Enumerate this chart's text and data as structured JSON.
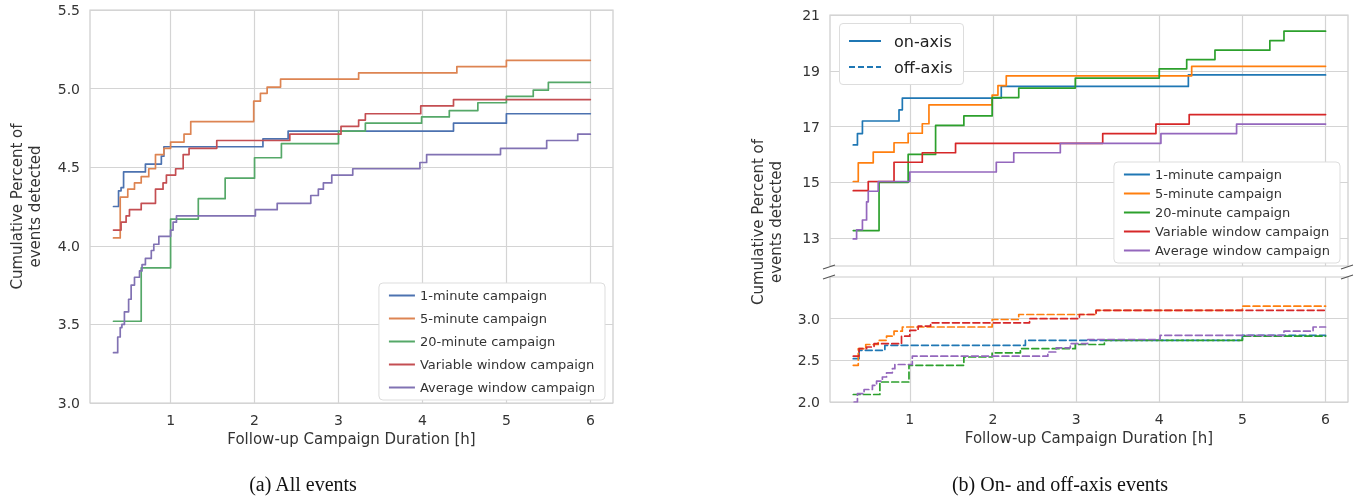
{
  "chart_data": [
    {
      "type": "step",
      "xlabel": "Follow-up Campaign Duration [h]",
      "ylabel": "Cumulative Percent of\nevents detected",
      "xlim": [
        0.04,
        6.27
      ],
      "xticks": [
        1,
        2,
        3,
        4,
        5,
        6
      ],
      "ylim": [
        3.0,
        5.5
      ],
      "yticks": [
        {
          "value": 3,
          "label": "3.0"
        },
        3.5,
        {
          "value": 4,
          "label": "4.0"
        },
        4.5,
        {
          "value": 5,
          "label": "5.0"
        },
        5.5
      ],
      "grid": true,
      "legend": "bottom right",
      "line_style": "solid",
      "annotations": [
        "(a) All events"
      ],
      "series": [
        {
          "name": "1-minute campaign",
          "color": "#4c72b0",
          "x": [
            0.32,
            0.38,
            0.41,
            0.44,
            0.7,
            0.89,
            0.92,
            2.1,
            2.4,
            4.37,
            5.0,
            6.0
          ],
          "values": [
            4.25,
            4.35,
            4.37,
            4.47,
            4.52,
            4.57,
            4.63,
            4.68,
            4.73,
            4.78,
            4.84,
            4.84
          ]
        },
        {
          "name": "5-minute campaign",
          "color": "#dd8452",
          "x": [
            0.32,
            0.4,
            0.49,
            0.57,
            0.65,
            0.74,
            0.82,
            0.92,
            1.0,
            1.16,
            1.24,
            1.99,
            2.07,
            2.15,
            2.31,
            3.24,
            4.41,
            5.0,
            6.0
          ],
          "values": [
            4.05,
            4.31,
            4.36,
            4.4,
            4.44,
            4.49,
            4.58,
            4.62,
            4.66,
            4.71,
            4.79,
            4.92,
            4.97,
            5.01,
            5.06,
            5.1,
            5.14,
            5.18,
            5.18
          ]
        },
        {
          "name": "20-minute campaign",
          "color": "#55a868",
          "x": [
            0.32,
            0.65,
            1.0,
            1.33,
            1.65,
            2.0,
            2.32,
            3.0,
            3.32,
            3.99,
            4.32,
            4.66,
            5.0,
            5.32,
            5.5,
            6.0
          ],
          "values": [
            3.52,
            3.86,
            4.17,
            4.3,
            4.43,
            4.56,
            4.65,
            4.73,
            4.78,
            4.82,
            4.86,
            4.91,
            4.95,
            4.99,
            5.04,
            5.04
          ]
        },
        {
          "name": "Variable window campaign",
          "color": "#c44e52",
          "x": [
            0.32,
            0.41,
            0.47,
            0.51,
            0.65,
            0.82,
            0.91,
            0.95,
            1.06,
            1.15,
            1.22,
            1.55,
            2.42,
            3.03,
            3.24,
            3.32,
            3.98,
            4.37,
            6.0
          ],
          "values": [
            4.1,
            4.15,
            4.19,
            4.23,
            4.27,
            4.36,
            4.4,
            4.45,
            4.49,
            4.58,
            4.62,
            4.67,
            4.71,
            4.76,
            4.8,
            4.84,
            4.89,
            4.93,
            4.93
          ]
        },
        {
          "name": "Average window campaign",
          "color": "#8172b3",
          "x": [
            0.32,
            0.37,
            0.4,
            0.42,
            0.45,
            0.5,
            0.53,
            0.57,
            0.63,
            0.66,
            0.7,
            0.77,
            0.8,
            0.86,
            1.0,
            1.03,
            1.07,
            2.01,
            2.27,
            2.67,
            2.76,
            2.82,
            2.92,
            3.17,
            3.97,
            4.05,
            4.93,
            5.48,
            5.85,
            6.0
          ],
          "values": [
            3.32,
            3.42,
            3.48,
            3.5,
            3.58,
            3.66,
            3.75,
            3.8,
            3.84,
            3.88,
            3.92,
            3.97,
            4.01,
            4.06,
            4.1,
            4.15,
            4.19,
            4.23,
            4.27,
            4.32,
            4.36,
            4.4,
            4.45,
            4.49,
            4.53,
            4.58,
            4.62,
            4.67,
            4.71,
            4.71
          ]
        }
      ]
    },
    {
      "type": "step",
      "ylabel": "Cumulative Percent of\nevents detected",
      "xlim": [
        0.04,
        6.27
      ],
      "xticks": [
        1,
        2,
        3,
        4,
        5,
        6
      ],
      "ylim": [
        12,
        21
      ],
      "yticks": [
        13,
        15,
        17,
        19,
        21
      ],
      "grid": true,
      "legend": "bottom right",
      "line_style": "solid",
      "tick_labels": "y",
      "annotations": [
        "on-axis",
        "off-axis"
      ],
      "series": [
        {
          "name": "1-minute campaign",
          "color": "#1f77b4",
          "x": [
            0.32,
            0.37,
            0.43,
            0.87,
            0.91,
            2.1,
            4.35,
            6.0
          ],
          "values": [
            16.34,
            16.75,
            17.2,
            17.6,
            18.02,
            18.44,
            18.85,
            18.85
          ]
        },
        {
          "name": "5-minute campaign",
          "color": "#ff7f0e",
          "x": [
            0.32,
            0.38,
            0.56,
            0.81,
            0.98,
            1.15,
            1.23,
            1.99,
            2.06,
            2.16,
            4.39,
            6.0
          ],
          "values": [
            15.03,
            15.7,
            16.08,
            16.42,
            16.76,
            17.1,
            17.78,
            18.13,
            18.47,
            18.82,
            19.16,
            19.16
          ]
        },
        {
          "name": "20-minute campaign",
          "color": "#2ca02c",
          "x": [
            0.32,
            0.63,
            0.98,
            1.31,
            1.65,
            1.99,
            2.31,
            2.99,
            4.0,
            4.33,
            4.67,
            5.33,
            5.5,
            6.0
          ],
          "values": [
            13.27,
            15.0,
            16.0,
            17.04,
            17.38,
            18.04,
            18.38,
            18.74,
            19.07,
            19.4,
            19.74,
            20.08,
            20.42,
            20.42
          ]
        },
        {
          "name": "Variable window campaign",
          "color": "#d62728",
          "x": [
            0.32,
            0.5,
            0.81,
            1.15,
            1.55,
            3.32,
            3.96,
            4.36,
            6.0
          ],
          "values": [
            14.7,
            15.03,
            15.72,
            16.06,
            16.4,
            16.75,
            17.09,
            17.43,
            17.43
          ]
        },
        {
          "name": "Average window campaign",
          "color": "#9467bd",
          "x": [
            0.32,
            0.36,
            0.43,
            0.48,
            0.5,
            0.62,
            1.0,
            2.04,
            2.25,
            2.81,
            4.02,
            4.93,
            6.0
          ],
          "values": [
            12.97,
            13.3,
            13.65,
            14.3,
            14.68,
            15.03,
            15.37,
            15.72,
            16.06,
            16.4,
            16.75,
            17.09,
            17.09
          ]
        }
      ]
    },
    {
      "type": "step",
      "xlabel": "Follow-up Campaign Duration [h]",
      "xlim": [
        0.04,
        6.27
      ],
      "xticks": [
        1,
        2,
        3,
        4,
        5,
        6
      ],
      "ylim": [
        2.0,
        3.5
      ],
      "yticks": [
        {
          "value": 2,
          "label": "2.0"
        },
        2.5,
        {
          "value": 3,
          "label": "3.0"
        }
      ],
      "grid": true,
      "line_style": "dashed",
      "annotations": [
        "(b) On- and off-axis events"
      ],
      "series": [
        {
          "color": "#1f77b4",
          "x": [
            0.32,
            0.39,
            0.7,
            2.39,
            5.0,
            6.0
          ],
          "values": [
            2.52,
            2.62,
            2.68,
            2.74,
            2.8,
            2.8
          ]
        },
        {
          "color": "#ff7f0e",
          "x": [
            0.32,
            0.38,
            0.47,
            0.62,
            0.72,
            0.81,
            0.91,
            1.99,
            2.31,
            3.24,
            5.0,
            6.0
          ],
          "values": [
            2.44,
            2.64,
            2.69,
            2.74,
            2.79,
            2.85,
            2.9,
            2.99,
            3.05,
            3.1,
            3.15,
            3.15
          ]
        },
        {
          "color": "#2ca02c",
          "x": [
            0.32,
            0.64,
            0.99,
            1.65,
            1.99,
            2.33,
            2.99,
            3.34,
            5.0,
            6.0
          ],
          "values": [
            2.09,
            2.24,
            2.44,
            2.54,
            2.59,
            2.64,
            2.69,
            2.74,
            2.79,
            2.79
          ]
        },
        {
          "color": "#d62728",
          "x": [
            0.32,
            0.39,
            0.48,
            0.57,
            0.9,
            1.0,
            1.1,
            1.25,
            2.44,
            3.04,
            3.24,
            6.0
          ],
          "values": [
            2.55,
            2.64,
            2.66,
            2.7,
            2.79,
            2.86,
            2.91,
            2.95,
            3.0,
            3.05,
            3.1,
            3.1
          ]
        },
        {
          "color": "#9467bd",
          "x": [
            0.33,
            0.37,
            0.45,
            0.55,
            0.6,
            0.67,
            0.72,
            0.79,
            0.82,
            1.03,
            2.66,
            2.76,
            2.93,
            3.14,
            4.01,
            5.5,
            5.85,
            6.0
          ],
          "values": [
            2.0,
            2.1,
            2.15,
            2.2,
            2.25,
            2.3,
            2.35,
            2.4,
            2.45,
            2.55,
            2.6,
            2.65,
            2.7,
            2.75,
            2.8,
            2.85,
            2.9,
            2.9
          ]
        }
      ]
    }
  ]
}
